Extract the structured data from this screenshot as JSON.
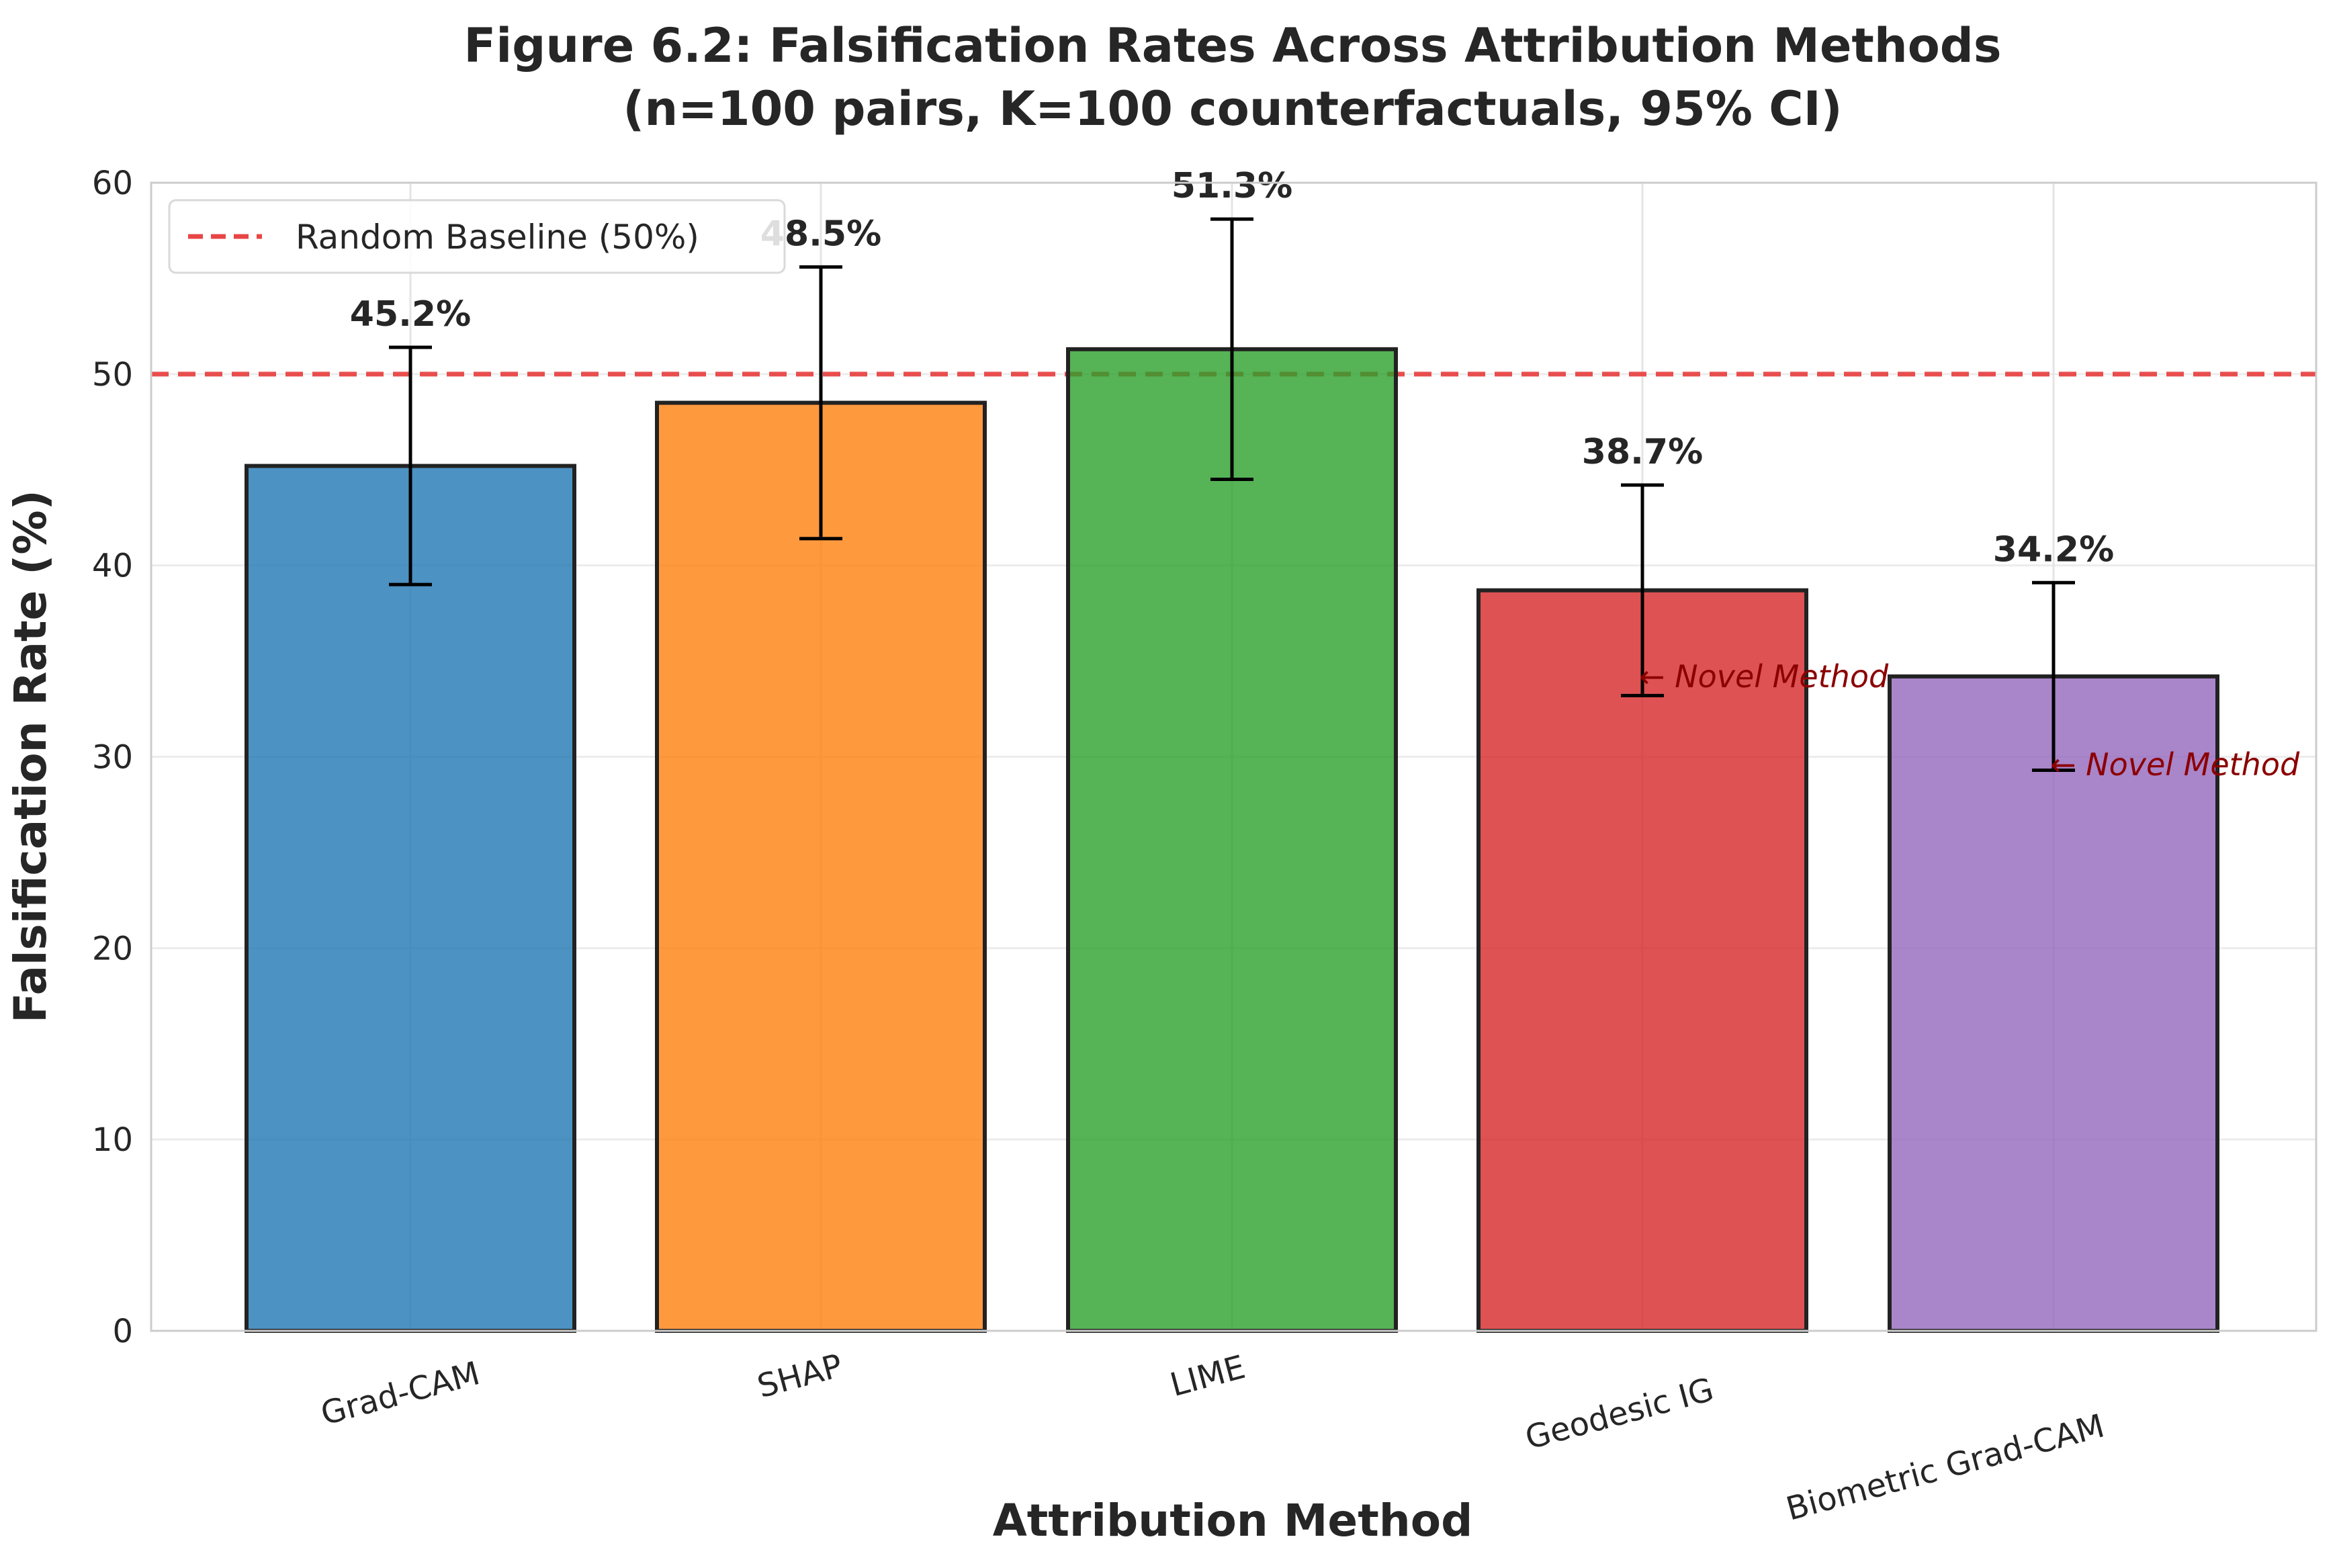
{
  "chart_data": {
    "type": "bar",
    "title": [
      "Figure 6.2: Falsification Rates Across Attribution Methods",
      "(n=100 pairs, K=100 counterfactuals, 95% CI)"
    ],
    "xlabel": "Attribution Method",
    "ylabel": "Falsification Rate (%)",
    "categories": [
      "Grad-CAM",
      "SHAP",
      "LIME",
      "Geodesic IG",
      "Biometric Grad-CAM"
    ],
    "values": [
      45.2,
      48.5,
      51.3,
      38.7,
      34.2
    ],
    "ci_lower": [
      39.0,
      41.4,
      44.5,
      33.2,
      29.3
    ],
    "ci_upper": [
      51.4,
      55.6,
      58.1,
      44.2,
      39.1
    ],
    "data_labels": [
      "45.2%",
      "48.5%",
      "51.3%",
      "38.7%",
      "34.2%"
    ],
    "colors": [
      "#1f77b4",
      "#ff7f0e",
      "#2ca02c",
      "#d62728",
      "#9467bd"
    ],
    "ylim": [
      0,
      60
    ],
    "yticks": [
      0,
      10,
      20,
      30,
      40,
      50,
      60
    ],
    "grid": true,
    "baseline": {
      "value": 50,
      "label": "Random Baseline (50%)",
      "color": "#e84545"
    },
    "legend_position": "top-left",
    "annotations": [
      {
        "category_index": 3,
        "text": "← Novel Method",
        "y": 34.2
      },
      {
        "category_index": 4,
        "text": "← Novel Method",
        "y": 29.6
      }
    ]
  }
}
